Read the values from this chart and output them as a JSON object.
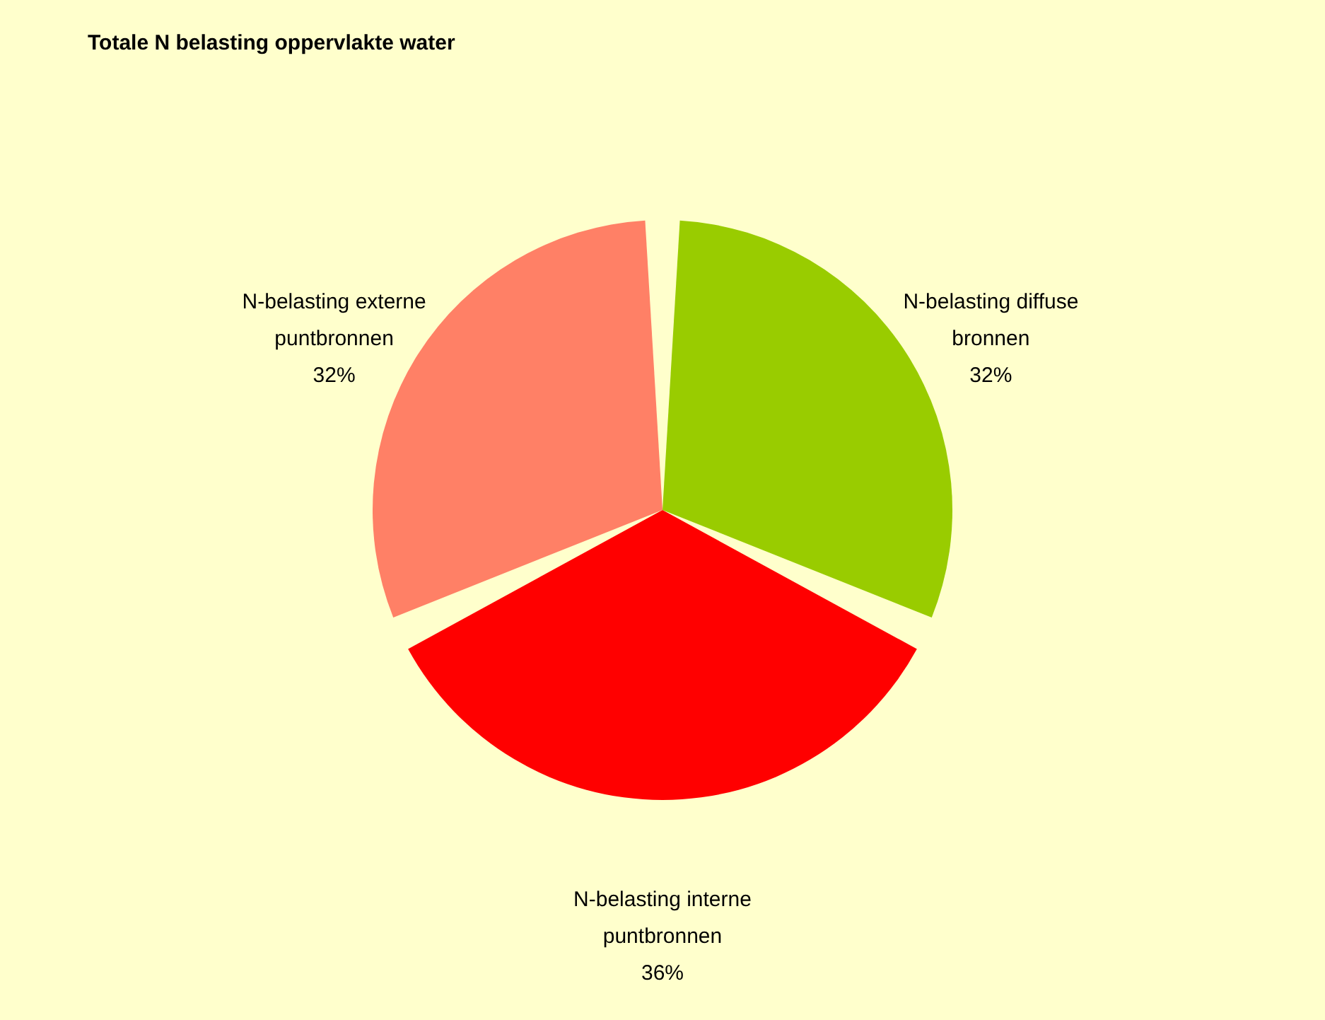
{
  "chart_data": {
    "type": "pie",
    "title": "Totale N belasting oppervlakte water",
    "categories": [
      "N-belasting diffuse bronnen",
      "N-belasting interne puntbronnen",
      "N-belasting externe puntbronnen"
    ],
    "values": [
      32,
      36,
      32
    ],
    "colors": [
      "#99cc00",
      "#ff0000",
      "#ff8066"
    ],
    "value_labels": [
      "32%",
      "36%",
      "32%"
    ],
    "legend": false
  }
}
